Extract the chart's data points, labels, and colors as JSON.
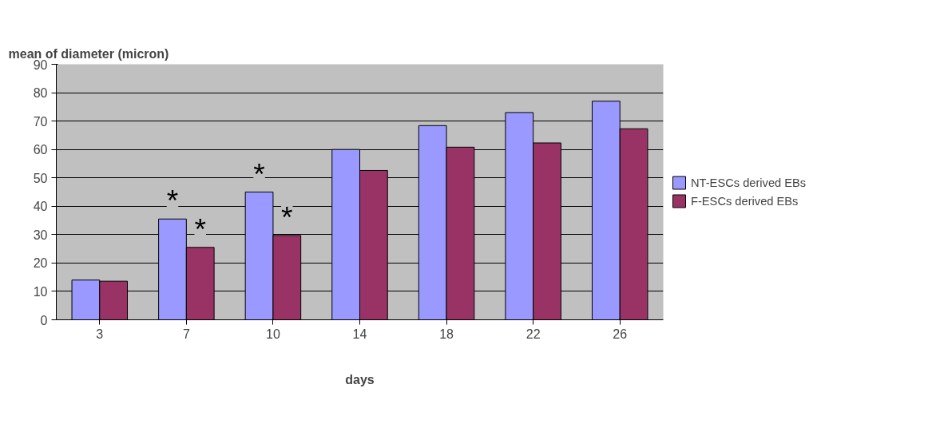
{
  "chart_data": {
    "type": "bar",
    "ylabel": "mean of diameter (micron)",
    "xlabel": "days",
    "categories": [
      "3",
      "7",
      "10",
      "14",
      "18",
      "22",
      "26"
    ],
    "series": [
      {
        "name": "NT-ESCs derived EBs",
        "color": "#9999ff",
        "values": [
          14,
          35.5,
          45,
          60,
          68.4,
          73,
          77
        ]
      },
      {
        "name": "F-ESCs derived EBs",
        "color": "#993366",
        "values": [
          13.6,
          25.5,
          29.7,
          52.6,
          60.8,
          62.3,
          67.3
        ]
      }
    ],
    "ylim": [
      0,
      90
    ],
    "yticks": [
      0,
      10,
      20,
      30,
      40,
      50,
      60,
      70,
      80,
      90
    ],
    "grid": "y",
    "legend": "right",
    "annotations": [
      {
        "text": "*",
        "x": "7",
        "y": 35.5
      },
      {
        "text": "*",
        "x": "7",
        "y": 25.5
      },
      {
        "text": "*",
        "x": "10",
        "y": 45
      },
      {
        "text": "*",
        "x": "10",
        "y": 29.7
      }
    ]
  }
}
